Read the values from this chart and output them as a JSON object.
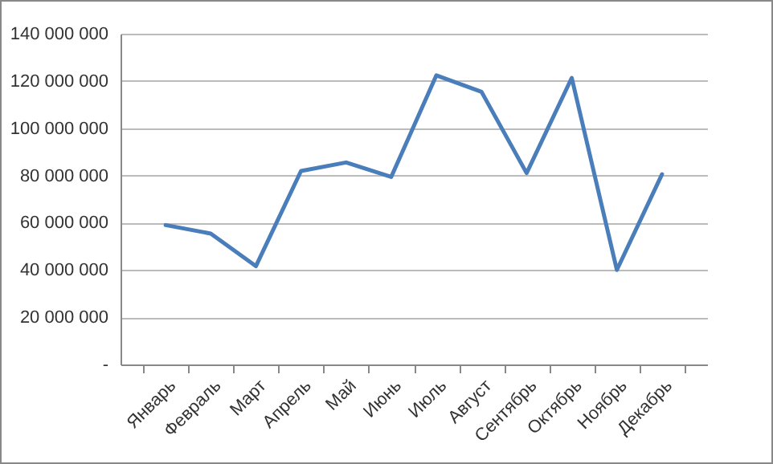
{
  "chart_data": {
    "type": "line",
    "categories": [
      "Январь",
      "Февраль",
      "Март",
      "Апрель",
      "Май",
      "Июнь",
      "Июль",
      "Август",
      "Сентябрь",
      "Октябрь",
      "Ноябрь",
      "Декабрь"
    ],
    "series": [
      {
        "color": "#4a7ebb",
        "values": [
          59000000,
          55400000,
          41600000,
          81900000,
          85500000,
          79400000,
          122400000,
          115400000,
          81000000,
          121300000,
          40000000,
          80500000
        ]
      }
    ],
    "ylim": [
      0,
      140000000
    ],
    "yticks": [
      {
        "value": 0,
        "label": "-"
      },
      {
        "value": 20000000,
        "label": "20 000 000"
      },
      {
        "value": 40000000,
        "label": "40 000 000"
      },
      {
        "value": 60000000,
        "label": "60 000 000"
      },
      {
        "value": 80000000,
        "label": "80 000 000"
      },
      {
        "value": 100000000,
        "label": "100 000 000"
      },
      {
        "value": 120000000,
        "label": "120 000 000"
      },
      {
        "value": 140000000,
        "label": "140 000 000"
      }
    ],
    "grid": "y",
    "legend": false,
    "marker": "none",
    "line_style": "solid"
  }
}
